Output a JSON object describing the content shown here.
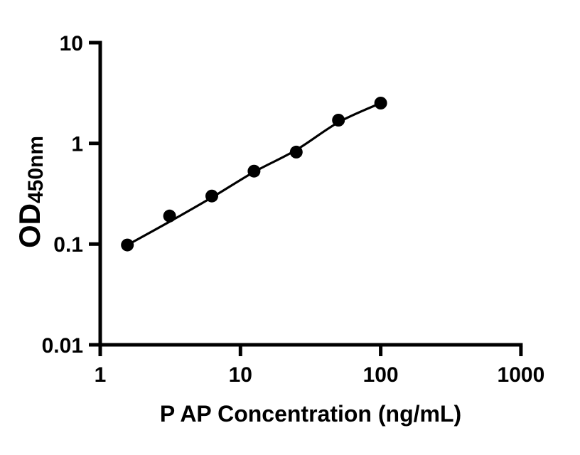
{
  "figure": {
    "background_color": "#ffffff",
    "foreground_color": "#000000"
  },
  "chart_data": {
    "type": "scatter",
    "title": "",
    "xlabel": "P AP Concentration (ng/mL)",
    "ylabel": "OD",
    "ylabel_subscript": "450nm",
    "x_scale": "log10",
    "y_scale": "log10",
    "xlim": [
      1,
      1000
    ],
    "ylim": [
      0.01,
      10
    ],
    "x_ticks": [
      1,
      10,
      100,
      1000
    ],
    "x_tick_labels": [
      "1",
      "10",
      "100",
      "1000"
    ],
    "y_ticks": [
      0.01,
      0.1,
      1,
      10
    ],
    "y_tick_labels": [
      "0.01",
      "0.1",
      "1",
      "10"
    ],
    "grid": false,
    "legend": null,
    "series": [
      {
        "name": "standard-points",
        "kind": "scatter",
        "marker": "filled-circle",
        "marker_color": "#000000",
        "marker_radius": 9,
        "x": [
          1.5625,
          3.125,
          6.25,
          12.5,
          25,
          50,
          100
        ],
        "y": [
          0.098,
          0.19,
          0.3,
          0.53,
          0.82,
          1.7,
          2.51
        ]
      },
      {
        "name": "fit-curve",
        "kind": "line",
        "line_color": "#000000",
        "line_width": 3.2,
        "x": [
          1.5625,
          3.125,
          6.25,
          12.5,
          25,
          50,
          100
        ],
        "y": [
          0.098,
          0.167,
          0.29,
          0.52,
          0.86,
          1.62,
          2.51
        ]
      }
    ]
  }
}
